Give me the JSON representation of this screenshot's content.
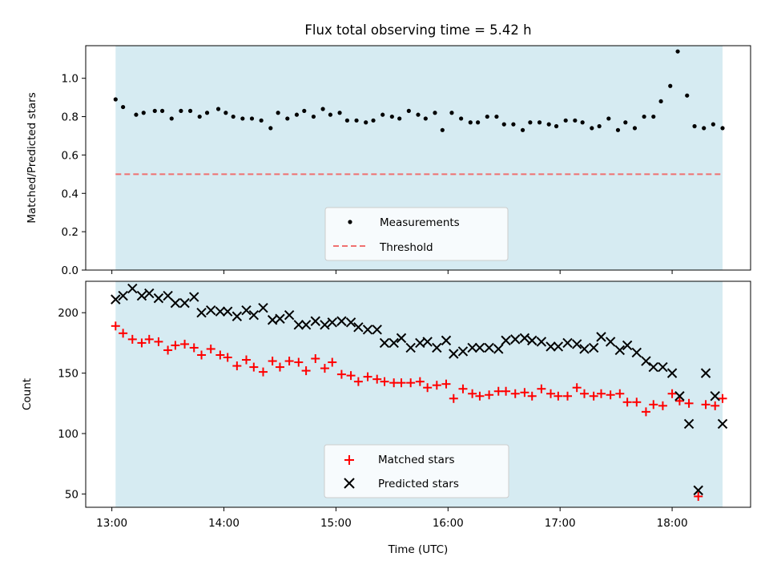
{
  "chart_data": [
    {
      "type": "scatter",
      "title": "Flux total observing time = 5.42 h",
      "xlabel": "",
      "ylabel": "Matched/Predicted stars",
      "xlim": [
        "12:46",
        "18:42"
      ],
      "ylim": [
        0,
        1.17
      ],
      "yticks": [
        "0.0",
        "0.2",
        "0.4",
        "0.6",
        "0.8",
        "1.0"
      ],
      "shaded_span": [
        "13:02",
        "18:27"
      ],
      "shade_color": "#add8e6",
      "threshold": 0.5,
      "legend": {
        "placement": "lower-center",
        "entries": [
          "Measurements",
          "Threshold"
        ]
      },
      "series": [
        {
          "name": "Measurements",
          "color": "#000000",
          "marker": "dot",
          "x": [
            "13:02",
            "13:06",
            "13:13",
            "13:17",
            "13:23",
            "13:27",
            "13:32",
            "13:37",
            "13:42",
            "13:47",
            "13:51",
            "13:57",
            "14:01",
            "14:05",
            "14:10",
            "14:15",
            "14:20",
            "14:25",
            "14:29",
            "14:34",
            "14:39",
            "14:43",
            "14:48",
            "14:53",
            "14:57",
            "15:02",
            "15:06",
            "15:11",
            "15:16",
            "15:20",
            "15:25",
            "15:30",
            "15:34",
            "15:39",
            "15:44",
            "15:48",
            "15:53",
            "15:57",
            "16:02",
            "16:07",
            "16:12",
            "16:16",
            "16:21",
            "16:26",
            "16:30",
            "16:35",
            "16:40",
            "16:44",
            "16:49",
            "16:54",
            "16:58",
            "17:03",
            "17:08",
            "17:12",
            "17:17",
            "17:21",
            "17:26",
            "17:31",
            "17:35",
            "17:40",
            "17:45",
            "17:50",
            "17:54",
            "17:59",
            "18:03",
            "18:08",
            "18:12",
            "18:17",
            "18:22",
            "18:27"
          ],
          "values": [
            0.89,
            0.85,
            0.81,
            0.82,
            0.83,
            0.83,
            0.79,
            0.83,
            0.83,
            0.8,
            0.82,
            0.84,
            0.82,
            0.8,
            0.79,
            0.79,
            0.78,
            0.74,
            0.82,
            0.79,
            0.81,
            0.83,
            0.8,
            0.84,
            0.81,
            0.82,
            0.78,
            0.78,
            0.77,
            0.78,
            0.81,
            0.8,
            0.79,
            0.83,
            0.81,
            0.79,
            0.82,
            0.73,
            0.82,
            0.79,
            0.77,
            0.77,
            0.8,
            0.8,
            0.76,
            0.76,
            0.73,
            0.77,
            0.77,
            0.76,
            0.75,
            0.78,
            0.78,
            0.77,
            0.74,
            0.75,
            0.79,
            0.73,
            0.77,
            0.74,
            0.8,
            0.8,
            0.88,
            0.96,
            1.14,
            0.91,
            0.75,
            0.74,
            0.76,
            0.74
          ]
        }
      ]
    },
    {
      "type": "scatter",
      "title": "",
      "xlabel": "Time (UTC)",
      "ylabel": "Count",
      "xlim": [
        "12:46",
        "18:42"
      ],
      "ylim": [
        39,
        226
      ],
      "yticks": [
        "50",
        "100",
        "150",
        "200"
      ],
      "xticks": [
        "13:00",
        "14:00",
        "15:00",
        "16:00",
        "17:00",
        "18:00"
      ],
      "shaded_span": [
        "13:02",
        "18:27"
      ],
      "shade_color": "#add8e6",
      "legend": {
        "placement": "lower-center",
        "entries": [
          "Matched stars",
          "Predicted stars"
        ]
      },
      "series": [
        {
          "name": "Matched stars",
          "color": "#ff0000",
          "marker": "plus",
          "x": [
            "13:02",
            "13:06",
            "13:11",
            "13:16",
            "13:20",
            "13:25",
            "13:30",
            "13:34",
            "13:39",
            "13:44",
            "13:48",
            "13:53",
            "13:58",
            "14:02",
            "14:07",
            "14:12",
            "14:16",
            "14:21",
            "14:26",
            "14:30",
            "14:35",
            "14:40",
            "14:44",
            "14:49",
            "14:54",
            "14:58",
            "15:03",
            "15:08",
            "15:12",
            "15:17",
            "15:22",
            "15:26",
            "15:31",
            "15:35",
            "15:40",
            "15:45",
            "15:49",
            "15:54",
            "15:59",
            "16:03",
            "16:08",
            "16:13",
            "16:17",
            "16:22",
            "16:27",
            "16:31",
            "16:36",
            "16:41",
            "16:45",
            "16:50",
            "16:55",
            "16:59",
            "17:04",
            "17:09",
            "17:13",
            "17:18",
            "17:22",
            "17:27",
            "17:32",
            "17:36",
            "17:41",
            "17:46",
            "17:50",
            "17:55",
            "18:00",
            "18:04",
            "18:09",
            "18:14",
            "18:18",
            "18:23",
            "18:27"
          ],
          "values": [
            189,
            183,
            178,
            175,
            178,
            176,
            169,
            173,
            174,
            171,
            165,
            170,
            165,
            163,
            156,
            161,
            155,
            151,
            160,
            155,
            160,
            159,
            152,
            162,
            154,
            159,
            149,
            148,
            143,
            147,
            145,
            143,
            142,
            142,
            142,
            143,
            138,
            140,
            141,
            129,
            137,
            133,
            131,
            132,
            135,
            135,
            133,
            134,
            131,
            137,
            133,
            131,
            131,
            138,
            133,
            131,
            133,
            132,
            133,
            126,
            126,
            118,
            124,
            123,
            133,
            127,
            125,
            48,
            124,
            123,
            129
          ],
          "note_order": "plotted in time order"
        },
        {
          "name": "Predicted stars",
          "color": "#000000",
          "marker": "x",
          "x": [
            "13:02",
            "13:06",
            "13:11",
            "13:16",
            "13:20",
            "13:25",
            "13:30",
            "13:34",
            "13:39",
            "13:44",
            "13:48",
            "13:53",
            "13:58",
            "14:02",
            "14:07",
            "14:12",
            "14:16",
            "14:21",
            "14:26",
            "14:30",
            "14:35",
            "14:40",
            "14:44",
            "14:49",
            "14:54",
            "14:58",
            "15:03",
            "15:08",
            "15:12",
            "15:17",
            "15:22",
            "15:26",
            "15:31",
            "15:35",
            "15:40",
            "15:45",
            "15:49",
            "15:54",
            "15:59",
            "16:03",
            "16:08",
            "16:13",
            "16:17",
            "16:22",
            "16:27",
            "16:31",
            "16:36",
            "16:41",
            "16:45",
            "16:50",
            "16:55",
            "16:59",
            "17:04",
            "17:09",
            "17:13",
            "17:18",
            "17:22",
            "17:27",
            "17:32",
            "17:36",
            "17:41",
            "17:46",
            "17:50",
            "17:55",
            "18:00",
            "18:04",
            "18:09",
            "18:14",
            "18:18",
            "18:23",
            "18:27"
          ],
          "values": [
            211,
            214,
            220,
            214,
            216,
            212,
            214,
            208,
            208,
            213,
            200,
            202,
            201,
            201,
            197,
            202,
            198,
            204,
            194,
            195,
            198,
            190,
            190,
            193,
            190,
            192,
            193,
            192,
            188,
            186,
            186,
            175,
            175,
            179,
            171,
            175,
            176,
            171,
            177,
            166,
            168,
            171,
            171,
            171,
            170,
            177,
            178,
            179,
            177,
            176,
            172,
            172,
            175,
            174,
            170,
            171,
            180,
            176,
            169,
            173,
            167,
            160,
            155,
            155,
            150,
            131,
            108,
            53,
            150,
            131,
            108
          ]
        }
      ]
    }
  ]
}
